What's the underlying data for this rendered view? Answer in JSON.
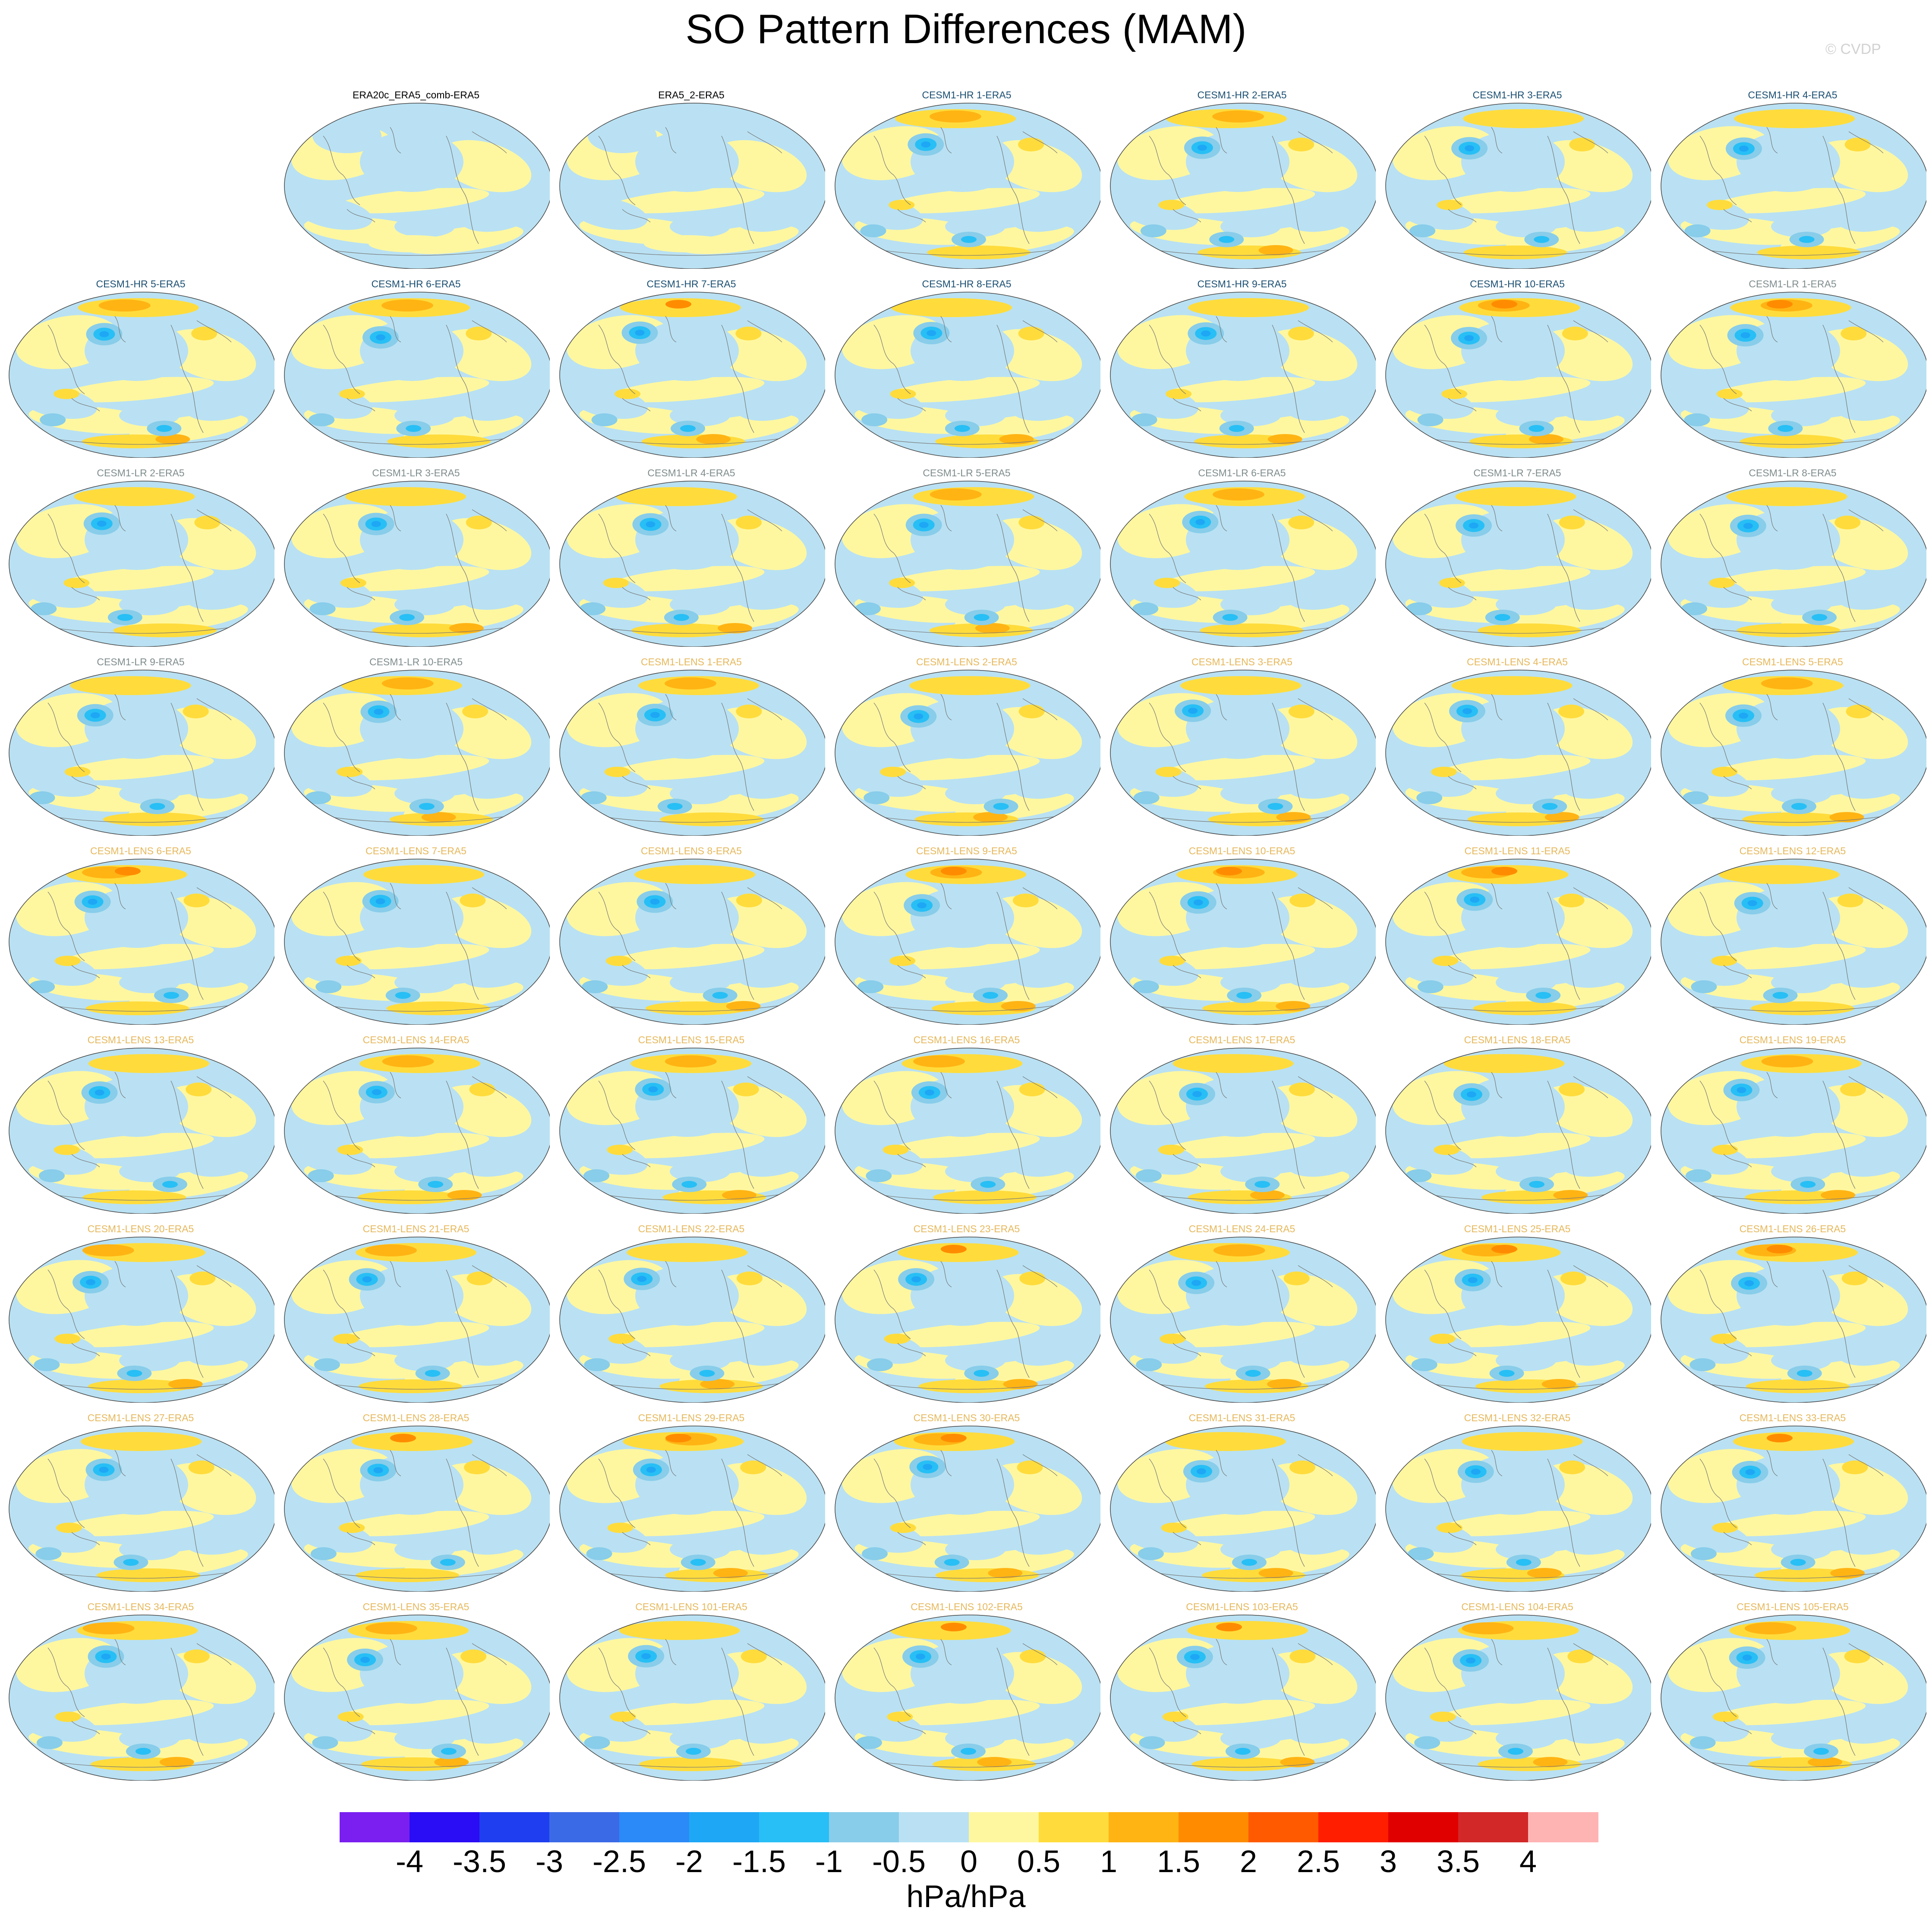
{
  "title": "SO Pattern Differences (MAM)",
  "watermark": "© CVDP",
  "units": "hPa/hPa",
  "title_colors": {
    "observation": "#000000",
    "cesm1_hr": "#1b4f72",
    "cesm1_lr": "#7f8c8d",
    "cesm1_lens": "#e6b85c"
  },
  "panels": [
    {
      "title": "ERA20c_ERA5_comb-ERA5",
      "group": "observation"
    },
    {
      "title": "ERA5_2-ERA5",
      "group": "observation"
    },
    {
      "title": "CESM1-HR 1-ERA5",
      "group": "cesm1_hr"
    },
    {
      "title": "CESM1-HR 2-ERA5",
      "group": "cesm1_hr"
    },
    {
      "title": "CESM1-HR 3-ERA5",
      "group": "cesm1_hr"
    },
    {
      "title": "CESM1-HR 4-ERA5",
      "group": "cesm1_hr"
    },
    {
      "title": "CESM1-HR 5-ERA5",
      "group": "cesm1_hr"
    },
    {
      "title": "CESM1-HR 6-ERA5",
      "group": "cesm1_hr"
    },
    {
      "title": "CESM1-HR 7-ERA5",
      "group": "cesm1_hr"
    },
    {
      "title": "CESM1-HR 8-ERA5",
      "group": "cesm1_hr"
    },
    {
      "title": "CESM1-HR 9-ERA5",
      "group": "cesm1_hr"
    },
    {
      "title": "CESM1-HR 10-ERA5",
      "group": "cesm1_hr"
    },
    {
      "title": "CESM1-LR 1-ERA5",
      "group": "cesm1_lr"
    },
    {
      "title": "CESM1-LR 2-ERA5",
      "group": "cesm1_lr"
    },
    {
      "title": "CESM1-LR 3-ERA5",
      "group": "cesm1_lr"
    },
    {
      "title": "CESM1-LR 4-ERA5",
      "group": "cesm1_lr"
    },
    {
      "title": "CESM1-LR 5-ERA5",
      "group": "cesm1_lr"
    },
    {
      "title": "CESM1-LR 6-ERA5",
      "group": "cesm1_lr"
    },
    {
      "title": "CESM1-LR 7-ERA5",
      "group": "cesm1_lr"
    },
    {
      "title": "CESM1-LR 8-ERA5",
      "group": "cesm1_lr"
    },
    {
      "title": "CESM1-LR 9-ERA5",
      "group": "cesm1_lr"
    },
    {
      "title": "CESM1-LR 10-ERA5",
      "group": "cesm1_lr"
    },
    {
      "title": "CESM1-LENS 1-ERA5",
      "group": "cesm1_lens"
    },
    {
      "title": "CESM1-LENS 2-ERA5",
      "group": "cesm1_lens"
    },
    {
      "title": "CESM1-LENS 3-ERA5",
      "group": "cesm1_lens"
    },
    {
      "title": "CESM1-LENS 4-ERA5",
      "group": "cesm1_lens"
    },
    {
      "title": "CESM1-LENS 5-ERA5",
      "group": "cesm1_lens"
    },
    {
      "title": "CESM1-LENS 6-ERA5",
      "group": "cesm1_lens"
    },
    {
      "title": "CESM1-LENS 7-ERA5",
      "group": "cesm1_lens"
    },
    {
      "title": "CESM1-LENS 8-ERA5",
      "group": "cesm1_lens"
    },
    {
      "title": "CESM1-LENS 9-ERA5",
      "group": "cesm1_lens"
    },
    {
      "title": "CESM1-LENS 10-ERA5",
      "group": "cesm1_lens"
    },
    {
      "title": "CESM1-LENS 11-ERA5",
      "group": "cesm1_lens"
    },
    {
      "title": "CESM1-LENS 12-ERA5",
      "group": "cesm1_lens"
    },
    {
      "title": "CESM1-LENS 13-ERA5",
      "group": "cesm1_lens"
    },
    {
      "title": "CESM1-LENS 14-ERA5",
      "group": "cesm1_lens"
    },
    {
      "title": "CESM1-LENS 15-ERA5",
      "group": "cesm1_lens"
    },
    {
      "title": "CESM1-LENS 16-ERA5",
      "group": "cesm1_lens"
    },
    {
      "title": "CESM1-LENS 17-ERA5",
      "group": "cesm1_lens"
    },
    {
      "title": "CESM1-LENS 18-ERA5",
      "group": "cesm1_lens"
    },
    {
      "title": "CESM1-LENS 19-ERA5",
      "group": "cesm1_lens"
    },
    {
      "title": "CESM1-LENS 20-ERA5",
      "group": "cesm1_lens"
    },
    {
      "title": "CESM1-LENS 21-ERA5",
      "group": "cesm1_lens"
    },
    {
      "title": "CESM1-LENS 22-ERA5",
      "group": "cesm1_lens"
    },
    {
      "title": "CESM1-LENS 23-ERA5",
      "group": "cesm1_lens"
    },
    {
      "title": "CESM1-LENS 24-ERA5",
      "group": "cesm1_lens"
    },
    {
      "title": "CESM1-LENS 25-ERA5",
      "group": "cesm1_lens"
    },
    {
      "title": "CESM1-LENS 26-ERA5",
      "group": "cesm1_lens"
    },
    {
      "title": "CESM1-LENS 27-ERA5",
      "group": "cesm1_lens"
    },
    {
      "title": "CESM1-LENS 28-ERA5",
      "group": "cesm1_lens"
    },
    {
      "title": "CESM1-LENS 29-ERA5",
      "group": "cesm1_lens"
    },
    {
      "title": "CESM1-LENS 30-ERA5",
      "group": "cesm1_lens"
    },
    {
      "title": "CESM1-LENS 31-ERA5",
      "group": "cesm1_lens"
    },
    {
      "title": "CESM1-LENS 32-ERA5",
      "group": "cesm1_lens"
    },
    {
      "title": "CESM1-LENS 33-ERA5",
      "group": "cesm1_lens"
    },
    {
      "title": "CESM1-LENS 34-ERA5",
      "group": "cesm1_lens"
    },
    {
      "title": "CESM1-LENS 35-ERA5",
      "group": "cesm1_lens"
    },
    {
      "title": "CESM1-LENS 101-ERA5",
      "group": "cesm1_lens"
    },
    {
      "title": "CESM1-LENS 102-ERA5",
      "group": "cesm1_lens"
    },
    {
      "title": "CESM1-LENS 103-ERA5",
      "group": "cesm1_lens"
    },
    {
      "title": "CESM1-LENS 104-ERA5",
      "group": "cesm1_lens"
    },
    {
      "title": "CESM1-LENS 105-ERA5",
      "group": "cesm1_lens"
    }
  ],
  "colorbar": {
    "labels": [
      "-4",
      "-3.5",
      "-3",
      "-2.5",
      "-2",
      "-1.5",
      "-1",
      "-0.5",
      "0",
      "0.5",
      "1",
      "1.5",
      "2",
      "2.5",
      "3",
      "3.5",
      "4"
    ],
    "colors": [
      "#7a1ff0",
      "#2a0cf5",
      "#1f3ef0",
      "#3b6ae6",
      "#2b8af7",
      "#1ea7f5",
      "#27bff5",
      "#88cdea",
      "#b9e1f3",
      "#fff7a0",
      "#ffdc3c",
      "#ffb414",
      "#ff8c00",
      "#ff5a00",
      "#ff1e00",
      "#e10000",
      "#d22828",
      "#ffb4b4"
    ]
  }
}
